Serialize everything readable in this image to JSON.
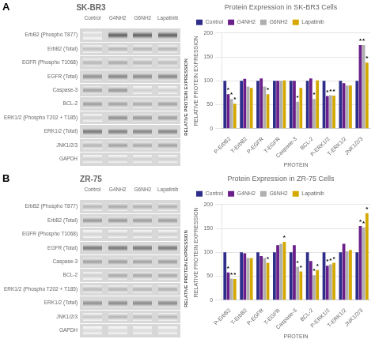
{
  "chart_data": [
    {
      "type": "heatmap",
      "title": "SK-BR3",
      "annotations": [
        {
          "text": "A"
        }
      ],
      "categories": [
        "Control",
        "G4NH2",
        "G6NH2",
        "Lapatinib"
      ],
      "row_labels": [
        "ErbB2 (Phospho T877)",
        "ErbB2 (Total)",
        "EGFR (Phospho T1068)",
        "EGFR (Total)",
        "Caspase-3",
        "BCL-2",
        "ERK1/2 (Phospho T202 + T185)",
        "ERK1/2 (Total)",
        "JNK1/2/3",
        "GAPDH"
      ],
      "cells": [
        [
          0.15,
          0.65,
          0.65,
          0.65
        ],
        [
          0.25,
          0.3,
          0.3,
          0.3
        ],
        [
          0.3,
          0.35,
          0.3,
          0.28
        ],
        [
          0.45,
          0.5,
          0.48,
          0.5
        ],
        [
          0.38,
          0.42,
          0.2,
          0.2
        ],
        [
          0.4,
          0.38,
          0.35,
          0.38
        ],
        [
          0.2,
          0.45,
          0.42,
          0.4
        ],
        [
          0.55,
          0.52,
          0.5,
          0.5
        ],
        [
          0.3,
          0.38,
          0.35,
          0.38
        ],
        [
          0.2,
          0.2,
          0.2,
          0.2
        ]
      ],
      "y_label": "RELATIVE PROTEIN EXPRESSION"
    },
    {
      "type": "bar",
      "title": "Protein Expression in SK-BR3 Cells",
      "x_label": "PROTEIN",
      "y_label": "RELATIVE PROTEIN EXPRESSION",
      "categories": [
        "P-ErbB2",
        "T-ErbB2",
        "P-EGFR",
        "T-EGFR",
        "Caspase-3",
        "BCL-2",
        "P-ERK1/2",
        "T-ERK1/2",
        "JNK1/2/3"
      ],
      "series": [
        {
          "name": "Control",
          "color": "#2e2e8a",
          "values": [
            100,
            100,
            100,
            100,
            100,
            100,
            100,
            100,
            100
          ]
        },
        {
          "name": "G4NH2",
          "color": "#6a1f8a",
          "values": [
            72,
            104,
            105,
            100,
            100,
            105,
            68,
            95,
            175
          ],
          "annotations": [
            "*",
            null,
            null,
            null,
            null,
            null,
            "*",
            null,
            "*"
          ]
        },
        {
          "name": "G6NH2",
          "color": "#b0b0b0",
          "values": [
            62,
            88,
            88,
            100,
            56,
            62,
            70,
            90,
            175
          ],
          "annotations": [
            "*",
            null,
            null,
            null,
            "*",
            "*",
            "*",
            null,
            "*"
          ]
        },
        {
          "name": "Lapatinib",
          "color": "#d4a800",
          "values": [
            52,
            85,
            72,
            101,
            85,
            101,
            69,
            90,
            138
          ],
          "annotations": [
            "*",
            null,
            "*",
            null,
            null,
            null,
            "*",
            null,
            "*"
          ]
        }
      ],
      "ylim": [
        0,
        200
      ],
      "yticks": [
        0,
        50,
        100,
        150,
        200
      ],
      "grid": "y",
      "legend": "upper left"
    },
    {
      "type": "heatmap",
      "title": "ZR-75",
      "annotations": [
        {
          "text": "B"
        }
      ],
      "categories": [
        "Control",
        "G4NH2",
        "G6NH2",
        "Lapatinib"
      ],
      "row_labels": [
        "ErbB2 (Phospho T877)",
        "ErbB2 (Total)",
        "EGFR (Phospho T1068)",
        "EGFR (Total)",
        "Caspase-3",
        "BCL-2",
        "ERK1/2 (Phospho T202 + T185)",
        "ERK1/2 (Total)",
        "JNK1/2/3",
        "GAPDH"
      ],
      "cells": [
        [
          0.3,
          0.35,
          0.32,
          0.33
        ],
        [
          0.42,
          0.42,
          0.4,
          0.4
        ],
        [
          0.18,
          0.2,
          0.2,
          0.2
        ],
        [
          0.55,
          0.55,
          0.55,
          0.55
        ],
        [
          0.38,
          0.4,
          0.38,
          0.4
        ],
        [
          0.2,
          0.35,
          0.35,
          0.35
        ],
        [
          0.28,
          0.3,
          0.3,
          0.32
        ],
        [
          0.45,
          0.48,
          0.48,
          0.48
        ],
        [
          0.22,
          0.3,
          0.28,
          0.3
        ],
        [
          0.15,
          0.15,
          0.15,
          0.15
        ]
      ],
      "y_label": "RELATIVE PROTEIN EXPRESSION"
    },
    {
      "type": "bar",
      "title": "Protein Expression in ZR-75 Cells",
      "x_label": "PROTEIN",
      "y_label": "RELATIVE PROTEIN EXPRESSION",
      "categories": [
        "P-ErbB2",
        "T-ErbB2",
        "P-EGFR",
        "T-EGFR",
        "Caspase-3",
        "BCL-2",
        "P-ERK1/2",
        "T-ERK1/2",
        "JNK1/2/3"
      ],
      "series": [
        {
          "name": "Control",
          "color": "#2e2e8a",
          "values": [
            100,
            100,
            100,
            100,
            100,
            100,
            100,
            100,
            100
          ]
        },
        {
          "name": "G4NH2",
          "color": "#6a1f8a",
          "values": [
            58,
            98,
            92,
            115,
            115,
            82,
            72,
            118,
            155
          ],
          "annotations": [
            "*",
            null,
            null,
            null,
            null,
            null,
            "*",
            null,
            "*"
          ]
        },
        {
          "name": "G6NH2",
          "color": "#b0b0b0",
          "values": [
            45,
            88,
            88,
            118,
            70,
            52,
            75,
            102,
            152
          ],
          "annotations": [
            "*",
            null,
            null,
            null,
            "*",
            "*",
            "*",
            null,
            "*"
          ]
        },
        {
          "name": "Lapatinib",
          "color": "#d4a800",
          "values": [
            44,
            88,
            78,
            122,
            60,
            63,
            78,
            105,
            182
          ],
          "annotations": [
            "*",
            null,
            "*",
            "*",
            "*",
            "*",
            "*",
            null,
            "*"
          ]
        }
      ],
      "ylim": [
        0,
        200
      ],
      "yticks": [
        0,
        50,
        100,
        150,
        200
      ],
      "grid": "y",
      "legend": "upper left"
    }
  ]
}
